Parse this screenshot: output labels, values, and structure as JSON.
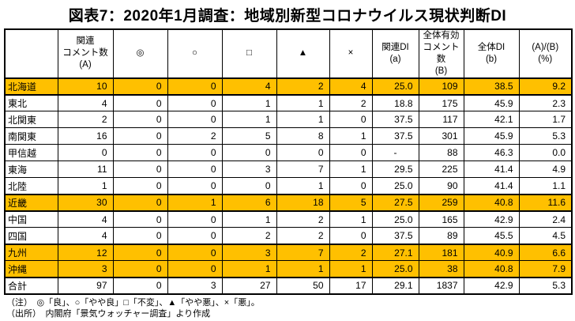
{
  "title": "図表7：2020年1月調査：地域別新型コロナウイルス現状判断DI",
  "colors": {
    "highlight": "#FFC000",
    "border": "#000000"
  },
  "chart_data": {
    "type": "table",
    "title": "図表7：2020年1月調査：地域別新型コロナウイルス現状判断DI",
    "columns": [
      "",
      "関連\nコメント数\n(A)",
      "◎",
      "○",
      "□",
      "▲",
      "×",
      "関連DI\n(a)",
      "全体有効\nコメント数\n(B)",
      "全体DI\n(b)",
      "(A)/(B)\n(%)"
    ],
    "rows": [
      {
        "region": "北海道",
        "highlight": true,
        "values": [
          "10",
          "0",
          "0",
          "4",
          "2",
          "4",
          "25.0",
          "109",
          "38.5",
          "9.2"
        ]
      },
      {
        "region": "東北",
        "highlight": false,
        "values": [
          "4",
          "0",
          "0",
          "1",
          "1",
          "2",
          "18.8",
          "175",
          "45.9",
          "2.3"
        ]
      },
      {
        "region": "北関東",
        "highlight": false,
        "values": [
          "2",
          "0",
          "0",
          "1",
          "1",
          "0",
          "37.5",
          "117",
          "42.1",
          "1.7"
        ]
      },
      {
        "region": "南関東",
        "highlight": false,
        "values": [
          "16",
          "0",
          "2",
          "5",
          "8",
          "1",
          "37.5",
          "301",
          "45.9",
          "5.3"
        ]
      },
      {
        "region": "甲信越",
        "highlight": false,
        "values": [
          "0",
          "0",
          "0",
          "0",
          "0",
          "0",
          "-",
          "88",
          "46.3",
          "0.0"
        ]
      },
      {
        "region": "東海",
        "highlight": false,
        "values": [
          "11",
          "0",
          "0",
          "3",
          "7",
          "1",
          "29.5",
          "225",
          "41.4",
          "4.9"
        ]
      },
      {
        "region": "北陸",
        "highlight": false,
        "values": [
          "1",
          "0",
          "0",
          "0",
          "1",
          "0",
          "25.0",
          "90",
          "41.4",
          "1.1"
        ]
      },
      {
        "region": "近畿",
        "highlight": true,
        "values": [
          "30",
          "0",
          "1",
          "6",
          "18",
          "5",
          "27.5",
          "259",
          "40.8",
          "11.6"
        ]
      },
      {
        "region": "中国",
        "highlight": false,
        "values": [
          "4",
          "0",
          "0",
          "1",
          "2",
          "1",
          "25.0",
          "165",
          "42.9",
          "2.4"
        ]
      },
      {
        "region": "四国",
        "highlight": false,
        "values": [
          "4",
          "0",
          "0",
          "2",
          "2",
          "0",
          "37.5",
          "89",
          "45.5",
          "4.5"
        ]
      },
      {
        "region": "九州",
        "highlight": true,
        "values": [
          "12",
          "0",
          "0",
          "3",
          "7",
          "2",
          "27.1",
          "181",
          "40.9",
          "6.6"
        ]
      },
      {
        "region": "沖縄",
        "highlight": true,
        "values": [
          "3",
          "0",
          "0",
          "1",
          "1",
          "1",
          "25.0",
          "38",
          "40.8",
          "7.9"
        ]
      },
      {
        "region": "合計",
        "highlight": false,
        "values": [
          "97",
          "0",
          "3",
          "27",
          "50",
          "17",
          "29.1",
          "1837",
          "42.9",
          "5.3"
        ]
      }
    ]
  },
  "notes": [
    "（注）　◎「良」、○「やや良」□「不変」、▲「やや悪」、×「悪」。",
    "（出所）　内閣府「景気ウォッチャー調査」より作成"
  ]
}
